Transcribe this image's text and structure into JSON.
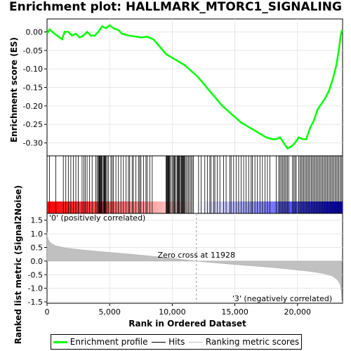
{
  "title": "Enrichment plot: HALLMARK_MTORC1_SIGNALING",
  "chart_data": [
    {
      "type": "line",
      "panel": "enrichment",
      "ylabel": "Enrichment score (ES)",
      "ylim": [
        -0.335,
        0.035
      ],
      "xlim": [
        0,
        23600
      ],
      "yticks": [
        "0.00",
        "-0.05",
        "-0.10",
        "-0.15",
        "-0.20",
        "-0.25",
        "-0.30"
      ],
      "ytick_values": [
        0.0,
        -0.05,
        -0.1,
        -0.15,
        -0.2,
        -0.25,
        -0.3
      ],
      "series": [
        {
          "name": "Enrichment profile",
          "color": "#00ff00",
          "x": [
            0,
            200,
            600,
            800,
            1200,
            1400,
            1700,
            2000,
            2300,
            2600,
            2900,
            3200,
            3500,
            3800,
            4100,
            4400,
            4700,
            5000,
            5300,
            5700,
            6000,
            6500,
            7000,
            7500,
            8000,
            8500,
            9000,
            9500,
            10000,
            10500,
            11000,
            11500,
            12000,
            12500,
            13000,
            13500,
            14000,
            14500,
            15000,
            15500,
            16000,
            16500,
            17000,
            17500,
            18000,
            18300,
            18600,
            18900,
            19200,
            19500,
            19800,
            20100,
            20400,
            20700,
            21000,
            21300,
            21600,
            21900,
            22200,
            22500,
            22800,
            23100,
            23300,
            23450,
            23550
          ],
          "y": [
            -0.005,
            0.007,
            -0.005,
            -0.01,
            -0.02,
            0.0,
            0.0,
            -0.01,
            -0.005,
            -0.015,
            -0.01,
            0.0,
            -0.01,
            -0.01,
            0.0,
            0.015,
            0.01,
            0.018,
            0.01,
            0.005,
            -0.005,
            -0.01,
            -0.012,
            -0.015,
            -0.013,
            -0.02,
            -0.04,
            -0.06,
            -0.07,
            -0.08,
            -0.09,
            -0.105,
            -0.12,
            -0.14,
            -0.16,
            -0.18,
            -0.2,
            -0.215,
            -0.23,
            -0.245,
            -0.255,
            -0.265,
            -0.275,
            -0.285,
            -0.29,
            -0.29,
            -0.285,
            -0.3,
            -0.315,
            -0.31,
            -0.3,
            -0.285,
            -0.29,
            -0.29,
            -0.26,
            -0.24,
            -0.21,
            -0.195,
            -0.18,
            -0.16,
            -0.13,
            -0.09,
            -0.05,
            -0.01,
            0.005
          ]
        }
      ]
    },
    {
      "type": "hits",
      "panel": "hits",
      "name": "Hits",
      "xlim": [
        0,
        23600
      ],
      "hit_positions": [
        200,
        700,
        1300,
        1500,
        1700,
        1900,
        2100,
        2300,
        2500,
        2800,
        2950,
        3050,
        3200,
        3400,
        3600,
        3900,
        4000,
        4100,
        4150,
        4200,
        4250,
        4300,
        4350,
        4400,
        4500,
        4550,
        4600,
        4650,
        4700,
        4800,
        4900,
        5100,
        5200,
        5300,
        5500,
        5700,
        5900,
        6100,
        6300,
        6500,
        6600,
        6800,
        6900,
        7100,
        7300,
        7400,
        7500,
        7700,
        7900,
        8000,
        8200,
        8400,
        9500,
        9550,
        9600,
        9650,
        9700,
        9750,
        9800,
        9900,
        10000,
        10100,
        10150,
        10200,
        10300,
        10400,
        10450,
        10500,
        10550,
        10600,
        10700,
        10750,
        10800,
        10850,
        10900,
        10950,
        11000,
        11100,
        11200,
        11300,
        11400,
        11500,
        11600,
        11700,
        12100,
        12300,
        12600,
        12800,
        13000,
        13100,
        13300,
        13400,
        13600,
        13800,
        14100,
        14300,
        14600,
        14700,
        14900,
        15100,
        15300,
        15500,
        15700,
        15900,
        16100,
        16300,
        16400,
        16600,
        16800,
        17000,
        17200,
        17400,
        17600,
        17800,
        18300,
        18500,
        18600,
        18700,
        18800,
        18900,
        19000,
        19100,
        19200,
        19300,
        19600,
        19700,
        19800,
        19900,
        20100,
        20200,
        20300,
        20400,
        20500,
        20600,
        20700,
        20800,
        20900,
        21000,
        21100,
        21200,
        21300,
        21400,
        21500,
        21600,
        21700,
        21800,
        21900,
        22000,
        22100,
        22200,
        22300,
        22400,
        22500,
        22600,
        22700,
        22800,
        22900,
        23000,
        23100,
        23200,
        23300,
        23400,
        23500
      ]
    },
    {
      "type": "area",
      "panel": "ranked-metric",
      "name": "Ranking metric scores",
      "ylabel": "Ranked list metric (Signal2Noise)",
      "xlabel": "Rank in Ordered Dataset",
      "ylim": [
        -1.55,
        1.75
      ],
      "xlim": [
        0,
        23600
      ],
      "yticks": [
        "1.5",
        "1.0",
        "0.5",
        "0.0",
        "-0.5",
        "-1.0",
        "-1.5"
      ],
      "ytick_values": [
        1.5,
        1.0,
        0.5,
        0.0,
        -0.5,
        -1.0,
        -1.5
      ],
      "xticks": [
        "0",
        "5,000",
        "10,000",
        "15,000",
        "20,000"
      ],
      "xtick_values": [
        0,
        5000,
        10000,
        15000,
        20000
      ],
      "color": "#c0c0c0",
      "x": [
        0,
        30,
        100,
        300,
        700,
        1500,
        3000,
        5000,
        7000,
        9000,
        11000,
        11928,
        13000,
        15000,
        17000,
        19000,
        21000,
        22000,
        22800,
        23200,
        23400,
        23500,
        23550
      ],
      "y": [
        1.05,
        0.92,
        0.78,
        0.66,
        0.56,
        0.48,
        0.4,
        0.32,
        0.24,
        0.15,
        0.05,
        0.0,
        -0.05,
        -0.13,
        -0.2,
        -0.28,
        -0.38,
        -0.45,
        -0.55,
        -0.7,
        -0.85,
        -1.1,
        -1.45
      ],
      "annotations": {
        "zero_cross": "Zero cross at 11928",
        "positive": "'0' (positively correlated)",
        "negative": "'3' (negatively correlated)"
      },
      "zero_cross_x": 11928
    }
  ],
  "legend": {
    "items": [
      {
        "label": "Enrichment profile",
        "color": "#00ff00"
      },
      {
        "label": "Hits",
        "color": "#000000"
      },
      {
        "label": "Ranking metric scores",
        "color": "#c0c0c0"
      }
    ]
  }
}
